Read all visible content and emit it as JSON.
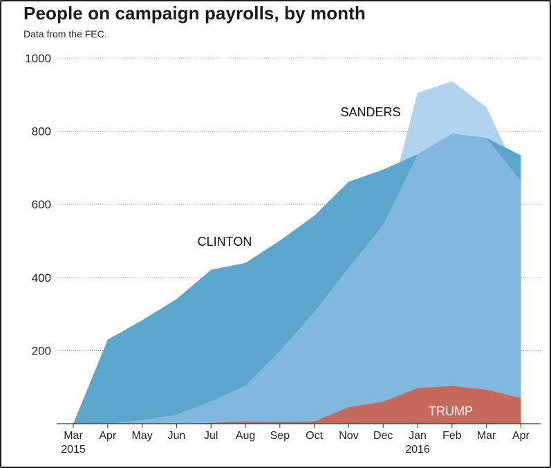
{
  "header": {
    "title": "People on campaign payrolls, by month",
    "subtitle": "Data from the FEC."
  },
  "colors": {
    "sanders": "#b0d3ee",
    "clinton": "#5ba6cb",
    "overlap": "#82b7de",
    "trump": "#c5695a",
    "label_dark": "#111111",
    "label_light": "#ffffff",
    "grid": "#999999",
    "axis": "#333333"
  },
  "chart_data": {
    "type": "area",
    "title": "People on campaign payrolls, by month",
    "subtitle": "Data from the FEC.",
    "xlabel": "",
    "ylabel": "",
    "ylim": [
      0,
      1000
    ],
    "yticks": [
      200,
      400,
      600,
      800,
      1000
    ],
    "grid": true,
    "categories": [
      "Mar",
      "Apr",
      "May",
      "Jun",
      "Jul",
      "Aug",
      "Sep",
      "Oct",
      "Nov",
      "Dec",
      "Jan",
      "Feb",
      "Mar",
      "Apr"
    ],
    "year_labels": [
      {
        "index": 0,
        "text": "2015"
      },
      {
        "index": 10,
        "text": "2016"
      }
    ],
    "series": [
      {
        "name": "Clinton",
        "label": "CLINTON",
        "values": [
          0,
          230,
          283,
          341,
          421,
          440,
          501,
          569,
          662,
          695,
          737,
          793,
          782,
          734
        ]
      },
      {
        "name": "Sanders",
        "label": "SANDERS",
        "values": [
          0,
          0,
          10,
          25,
          61,
          104,
          199,
          306,
          427,
          544,
          905,
          937,
          866,
          664
        ]
      },
      {
        "name": "Trump",
        "label": "TRUMP",
        "values": [
          0,
          0,
          0,
          0,
          2,
          6,
          5,
          6,
          45,
          60,
          97,
          103,
          93,
          70
        ]
      }
    ]
  }
}
